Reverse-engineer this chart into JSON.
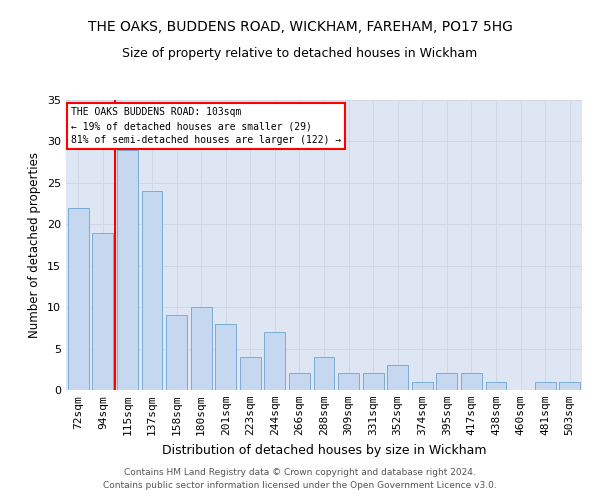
{
  "title": "THE OAKS, BUDDENS ROAD, WICKHAM, FAREHAM, PO17 5HG",
  "subtitle": "Size of property relative to detached houses in Wickham",
  "xlabel": "Distribution of detached houses by size in Wickham",
  "ylabel": "Number of detached properties",
  "categories": [
    "72sqm",
    "94sqm",
    "115sqm",
    "137sqm",
    "158sqm",
    "180sqm",
    "201sqm",
    "223sqm",
    "244sqm",
    "266sqm",
    "288sqm",
    "309sqm",
    "331sqm",
    "352sqm",
    "374sqm",
    "395sqm",
    "417sqm",
    "438sqm",
    "460sqm",
    "481sqm",
    "503sqm"
  ],
  "values": [
    22,
    19,
    29,
    24,
    9,
    10,
    8,
    4,
    7,
    2,
    4,
    2,
    2,
    3,
    1,
    2,
    2,
    1,
    0,
    1,
    1
  ],
  "bar_color": "#c5d8f0",
  "bar_edge_color": "#7aadd4",
  "grid_color": "#d0d8e8",
  "bg_color": "#dde6f2",
  "vline_x": 1.5,
  "vline_color": "red",
  "annotation_text": "THE OAKS BUDDENS ROAD: 103sqm\n← 19% of detached houses are smaller (29)\n81% of semi-detached houses are larger (122) →",
  "annotation_box_color": "white",
  "annotation_box_edge_color": "red",
  "footnote": "Contains HM Land Registry data © Crown copyright and database right 2024.\nContains public sector information licensed under the Open Government Licence v3.0.",
  "ylim": [
    0,
    35
  ],
  "yticks": [
    0,
    5,
    10,
    15,
    20,
    25,
    30,
    35
  ],
  "title_fontsize": 10,
  "subtitle_fontsize": 9,
  "xlabel_fontsize": 9,
  "ylabel_fontsize": 8.5,
  "tick_fontsize": 8,
  "annotation_fontsize": 7,
  "footnote_fontsize": 6.5
}
